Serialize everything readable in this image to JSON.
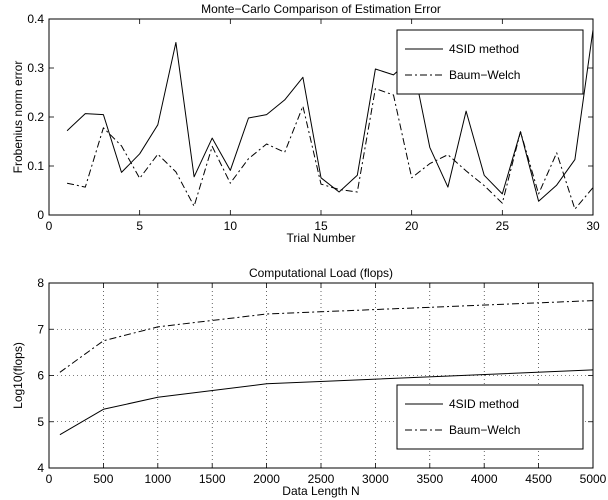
{
  "chart_data": [
    {
      "type": "line",
      "title": "Monte−Carlo Comparison of Estimation Error",
      "xlabel": "Trial Number",
      "ylabel": "Frobenius norm error",
      "xlim": [
        0,
        30
      ],
      "ylim": [
        0,
        0.4
      ],
      "xticks": [
        0,
        5,
        10,
        15,
        20,
        25,
        30
      ],
      "yticks": [
        0,
        0.1,
        0.2,
        0.3,
        0.4
      ],
      "grid": false,
      "legend_position": "top-right",
      "series": [
        {
          "name": "4SID method",
          "style": "solid",
          "x": [
            1,
            2,
            3,
            4,
            5,
            6,
            7,
            8,
            9,
            10,
            11,
            12,
            13,
            14,
            15,
            16,
            17,
            18,
            19,
            20,
            21,
            22,
            23,
            24,
            25,
            26,
            27,
            28,
            29,
            30
          ],
          "values": [
            0.172,
            0.207,
            0.205,
            0.087,
            0.125,
            0.184,
            0.352,
            0.078,
            0.157,
            0.091,
            0.198,
            0.205,
            0.235,
            0.281,
            0.076,
            0.047,
            0.081,
            0.298,
            0.286,
            0.32,
            0.138,
            0.057,
            0.212,
            0.081,
            0.043,
            0.17,
            0.028,
            0.061,
            0.113,
            0.378
          ]
        },
        {
          "name": "Baum−Welch",
          "style": "dashdot",
          "x": [
            1,
            2,
            3,
            4,
            5,
            6,
            7,
            8,
            9,
            10,
            11,
            12,
            13,
            14,
            15,
            16,
            17,
            18,
            19,
            20,
            21,
            22,
            23,
            24,
            25,
            26,
            27,
            28,
            29,
            30
          ],
          "values": [
            0.065,
            0.057,
            0.178,
            0.141,
            0.075,
            0.124,
            0.088,
            0.018,
            0.14,
            0.065,
            0.115,
            0.145,
            0.128,
            0.222,
            0.063,
            0.052,
            0.047,
            0.258,
            0.245,
            0.076,
            0.105,
            0.123,
            0.09,
            0.06,
            0.024,
            0.17,
            0.043,
            0.127,
            0.012,
            0.056
          ]
        }
      ]
    },
    {
      "type": "line",
      "title": "Computational Load (flops)",
      "xlabel": "Data Length N",
      "ylabel": "Log10(flops)",
      "xlim": [
        0,
        5000
      ],
      "ylim": [
        4,
        8
      ],
      "xticks": [
        0,
        500,
        1000,
        1500,
        2000,
        2500,
        3000,
        3500,
        4000,
        4500,
        5000
      ],
      "yticks": [
        4,
        5,
        6,
        7,
        8
      ],
      "grid": true,
      "legend_position": "bottom-right",
      "series": [
        {
          "name": "4SID method",
          "style": "solid",
          "x": [
            100,
            500,
            1000,
            2000,
            5000
          ],
          "values": [
            4.72,
            5.27,
            5.53,
            5.82,
            6.12
          ]
        },
        {
          "name": "Baum−Welch",
          "style": "dashdot",
          "x": [
            100,
            500,
            1000,
            2000,
            5000
          ],
          "values": [
            6.07,
            6.75,
            7.05,
            7.33,
            7.62
          ]
        }
      ]
    }
  ]
}
